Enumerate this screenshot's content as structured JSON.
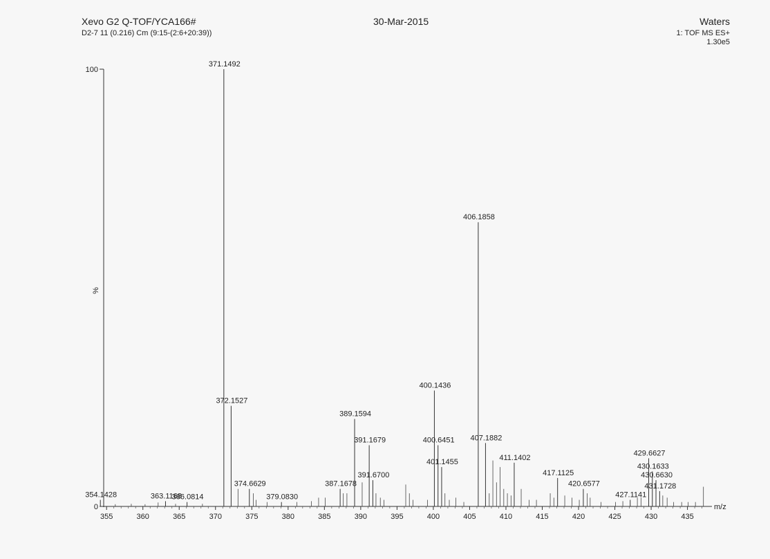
{
  "header": {
    "instrument": "Xevo G2 Q-TOF/YCA166#",
    "sample": "D2-7 11 (0.216) Cm (9:15-(2:6+20:39))",
    "date": "30-Mar-2015",
    "brand": "Waters",
    "function": "1: TOF MS ES+",
    "intensity_scale": "1.30e5"
  },
  "chart_data": {
    "type": "bar",
    "ylabel": "%",
    "xlabel": "m/z",
    "xlim": [
      354.6,
      437.8
    ],
    "ylim": [
      0,
      100
    ],
    "y_ticks": [
      0,
      100
    ],
    "x_ticks": [
      355,
      360,
      365,
      370,
      375,
      380,
      385,
      390,
      395,
      400,
      405,
      410,
      415,
      420,
      425,
      430,
      435
    ],
    "peaks": [
      {
        "mz": 354.1428,
        "intensity": 1.5,
        "label": "354.1428"
      },
      {
        "mz": 363.1168,
        "intensity": 1.2,
        "label": "363.1168"
      },
      {
        "mz": 366.0814,
        "intensity": 1.0,
        "label": "366.0814"
      },
      {
        "mz": 371.1492,
        "intensity": 100,
        "label": "371.1492"
      },
      {
        "mz": 372.1527,
        "intensity": 23.0,
        "label": "372.1527"
      },
      {
        "mz": 374.6629,
        "intensity": 4.0,
        "label": "374.6629"
      },
      {
        "mz": 379.083,
        "intensity": 1.0,
        "label": "379.0830"
      },
      {
        "mz": 387.1678,
        "intensity": 4.0,
        "label": "387.1678"
      },
      {
        "mz": 389.1594,
        "intensity": 20.0,
        "label": "389.1594"
      },
      {
        "mz": 391.1679,
        "intensity": 14.0,
        "label": "391.1679"
      },
      {
        "mz": 391.67,
        "intensity": 6.0,
        "label": "391.6700"
      },
      {
        "mz": 400.1436,
        "intensity": 26.5,
        "label": "400.1436"
      },
      {
        "mz": 400.6451,
        "intensity": 14.0,
        "label": "400.6451"
      },
      {
        "mz": 401.1455,
        "intensity": 9.0,
        "label": "401.1455"
      },
      {
        "mz": 406.1858,
        "intensity": 65.0,
        "label": "406.1858"
      },
      {
        "mz": 407.1882,
        "intensity": 14.5,
        "label": "407.1882"
      },
      {
        "mz": 411.1402,
        "intensity": 10.0,
        "label": "411.1402"
      },
      {
        "mz": 417.1125,
        "intensity": 6.5,
        "label": "417.1125"
      },
      {
        "mz": 420.6577,
        "intensity": 4.0,
        "label": "420.6577"
      },
      {
        "mz": 427.1141,
        "intensity": 1.5,
        "label": "427.1141"
      },
      {
        "mz": 429.6627,
        "intensity": 11.0,
        "label": "429.6627"
      },
      {
        "mz": 430.1633,
        "intensity": 8.0,
        "label": "430.1633"
      },
      {
        "mz": 430.663,
        "intensity": 6.0,
        "label": "430.6630"
      },
      {
        "mz": 431.1728,
        "intensity": 3.5,
        "label": "431.1728"
      }
    ],
    "minor_peaks": [
      {
        "mz": 356.2,
        "intensity": 0.5
      },
      {
        "mz": 358.4,
        "intensity": 0.6
      },
      {
        "mz": 360.3,
        "intensity": 0.5
      },
      {
        "mz": 362.1,
        "intensity": 0.9
      },
      {
        "mz": 364.5,
        "intensity": 0.6
      },
      {
        "mz": 368.2,
        "intensity": 0.6
      },
      {
        "mz": 373.1,
        "intensity": 4.0
      },
      {
        "mz": 375.2,
        "intensity": 3.0
      },
      {
        "mz": 375.6,
        "intensity": 1.5
      },
      {
        "mz": 377.1,
        "intensity": 1.0
      },
      {
        "mz": 381.2,
        "intensity": 1.0
      },
      {
        "mz": 383.2,
        "intensity": 1.2
      },
      {
        "mz": 384.2,
        "intensity": 2.0
      },
      {
        "mz": 385.1,
        "intensity": 2.0
      },
      {
        "mz": 387.6,
        "intensity": 3.0
      },
      {
        "mz": 388.1,
        "intensity": 3.0
      },
      {
        "mz": 390.2,
        "intensity": 5.5
      },
      {
        "mz": 392.1,
        "intensity": 3.0
      },
      {
        "mz": 392.7,
        "intensity": 2.0
      },
      {
        "mz": 393.2,
        "intensity": 1.5
      },
      {
        "mz": 396.2,
        "intensity": 5.0
      },
      {
        "mz": 396.7,
        "intensity": 3.0
      },
      {
        "mz": 397.2,
        "intensity": 1.5
      },
      {
        "mz": 399.2,
        "intensity": 1.5
      },
      {
        "mz": 401.6,
        "intensity": 3.0
      },
      {
        "mz": 402.2,
        "intensity": 1.5
      },
      {
        "mz": 403.1,
        "intensity": 2.0
      },
      {
        "mz": 404.2,
        "intensity": 1.0
      },
      {
        "mz": 407.7,
        "intensity": 3.0
      },
      {
        "mz": 408.2,
        "intensity": 10.5
      },
      {
        "mz": 408.7,
        "intensity": 5.5
      },
      {
        "mz": 409.2,
        "intensity": 9.0
      },
      {
        "mz": 409.7,
        "intensity": 4.0
      },
      {
        "mz": 410.2,
        "intensity": 3.0
      },
      {
        "mz": 410.7,
        "intensity": 2.5
      },
      {
        "mz": 412.1,
        "intensity": 4.0
      },
      {
        "mz": 413.2,
        "intensity": 1.5
      },
      {
        "mz": 414.2,
        "intensity": 1.5
      },
      {
        "mz": 416.1,
        "intensity": 3.0
      },
      {
        "mz": 416.6,
        "intensity": 2.0
      },
      {
        "mz": 418.1,
        "intensity": 2.5
      },
      {
        "mz": 419.1,
        "intensity": 2.0
      },
      {
        "mz": 420.1,
        "intensity": 1.5
      },
      {
        "mz": 421.2,
        "intensity": 3.0
      },
      {
        "mz": 421.6,
        "intensity": 2.0
      },
      {
        "mz": 423.1,
        "intensity": 1.0
      },
      {
        "mz": 425.1,
        "intensity": 1.0
      },
      {
        "mz": 426.1,
        "intensity": 1.2
      },
      {
        "mz": 428.1,
        "intensity": 2.0
      },
      {
        "mz": 428.6,
        "intensity": 2.0
      },
      {
        "mz": 431.6,
        "intensity": 2.5
      },
      {
        "mz": 432.2,
        "intensity": 2.0
      },
      {
        "mz": 433.1,
        "intensity": 1.0
      },
      {
        "mz": 434.2,
        "intensity": 1.0
      },
      {
        "mz": 435.1,
        "intensity": 1.0
      },
      {
        "mz": 436.1,
        "intensity": 1.0
      },
      {
        "mz": 437.2,
        "intensity": 4.5
      }
    ]
  }
}
